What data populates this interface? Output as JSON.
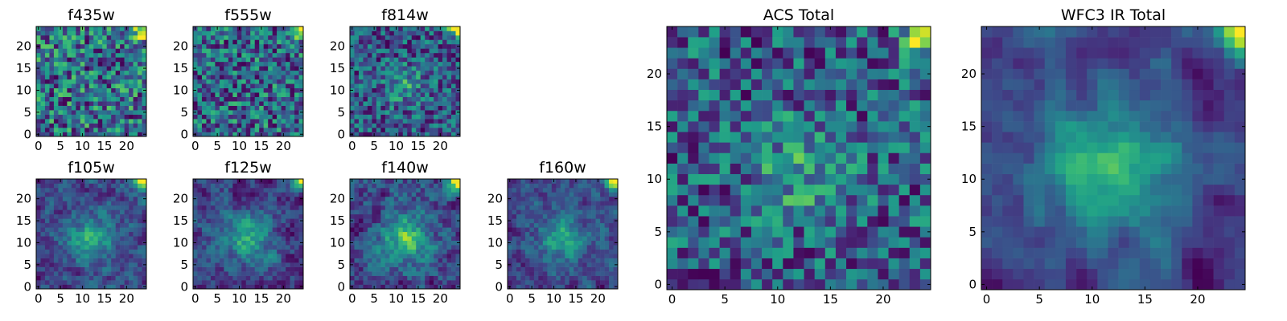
{
  "chart_data": [
    {
      "type": "heatmap",
      "title": "f435w",
      "grid_size": 25,
      "colormap": "viridis",
      "seed": 11,
      "pattern": "noise",
      "xticks": [
        "0",
        "5",
        "10",
        "15",
        "20"
      ],
      "yticks": [
        "0",
        "5",
        "10",
        "15",
        "20"
      ],
      "xlim": [
        0,
        25
      ],
      "ylim": [
        0,
        25
      ]
    },
    {
      "type": "heatmap",
      "title": "f555w",
      "grid_size": 25,
      "colormap": "viridis",
      "seed": 23,
      "pattern": "noise",
      "xticks": [
        "0",
        "5",
        "10",
        "15",
        "20"
      ],
      "yticks": [
        "0",
        "5",
        "10",
        "15",
        "20"
      ],
      "xlim": [
        0,
        25
      ],
      "ylim": [
        0,
        25
      ]
    },
    {
      "type": "heatmap",
      "title": "f814w",
      "grid_size": 25,
      "colormap": "viridis",
      "seed": 37,
      "pattern": "noise-core",
      "xticks": [
        "0",
        "5",
        "10",
        "15",
        "20"
      ],
      "yticks": [
        "0",
        "5",
        "10",
        "15",
        "20"
      ],
      "xlim": [
        0,
        25
      ],
      "ylim": [
        0,
        25
      ]
    },
    {
      "type": "heatmap",
      "title": "f105w",
      "grid_size": 25,
      "colormap": "viridis",
      "seed": 41,
      "pattern": "core",
      "xticks": [
        "0",
        "5",
        "10",
        "15",
        "20"
      ],
      "yticks": [
        "0",
        "5",
        "10",
        "15",
        "20"
      ],
      "xlim": [
        0,
        25
      ],
      "ylim": [
        0,
        25
      ]
    },
    {
      "type": "heatmap",
      "title": "f125w",
      "grid_size": 25,
      "colormap": "viridis",
      "seed": 53,
      "pattern": "core",
      "xticks": [
        "0",
        "5",
        "10",
        "15",
        "20"
      ],
      "yticks": [
        "0",
        "5",
        "10",
        "15",
        "20"
      ],
      "xlim": [
        0,
        25
      ],
      "ylim": [
        0,
        25
      ]
    },
    {
      "type": "heatmap",
      "title": "f140w",
      "grid_size": 25,
      "colormap": "viridis",
      "seed": 67,
      "pattern": "core",
      "xticks": [
        "0",
        "5",
        "10",
        "15",
        "20"
      ],
      "yticks": [
        "0",
        "5",
        "10",
        "15",
        "20"
      ],
      "xlim": [
        0,
        25
      ],
      "ylim": [
        0,
        25
      ]
    },
    {
      "type": "heatmap",
      "title": "f160w",
      "grid_size": 25,
      "colormap": "viridis",
      "seed": 79,
      "pattern": "core",
      "xticks": [
        "0",
        "5",
        "10",
        "15",
        "20"
      ],
      "yticks": [
        "0",
        "5",
        "10",
        "15",
        "20"
      ],
      "xlim": [
        0,
        25
      ],
      "ylim": [
        0,
        25
      ]
    },
    {
      "type": "heatmap",
      "title": "ACS Total",
      "grid_size": 25,
      "colormap": "viridis",
      "seed": 97,
      "pattern": "noise-core",
      "xticks": [
        "0",
        "5",
        "10",
        "15",
        "20"
      ],
      "yticks": [
        "0",
        "5",
        "10",
        "15",
        "20"
      ],
      "xlim": [
        0,
        25
      ],
      "ylim": [
        0,
        25
      ]
    },
    {
      "type": "heatmap",
      "title": "WFC3 IR Total",
      "grid_size": 25,
      "colormap": "viridis",
      "seed": 131,
      "pattern": "smooth-core",
      "xticks": [
        "0",
        "5",
        "10",
        "15",
        "20"
      ],
      "yticks": [
        "0",
        "5",
        "10",
        "15",
        "20"
      ],
      "xlim": [
        0,
        25
      ],
      "ylim": [
        0,
        25
      ]
    }
  ]
}
